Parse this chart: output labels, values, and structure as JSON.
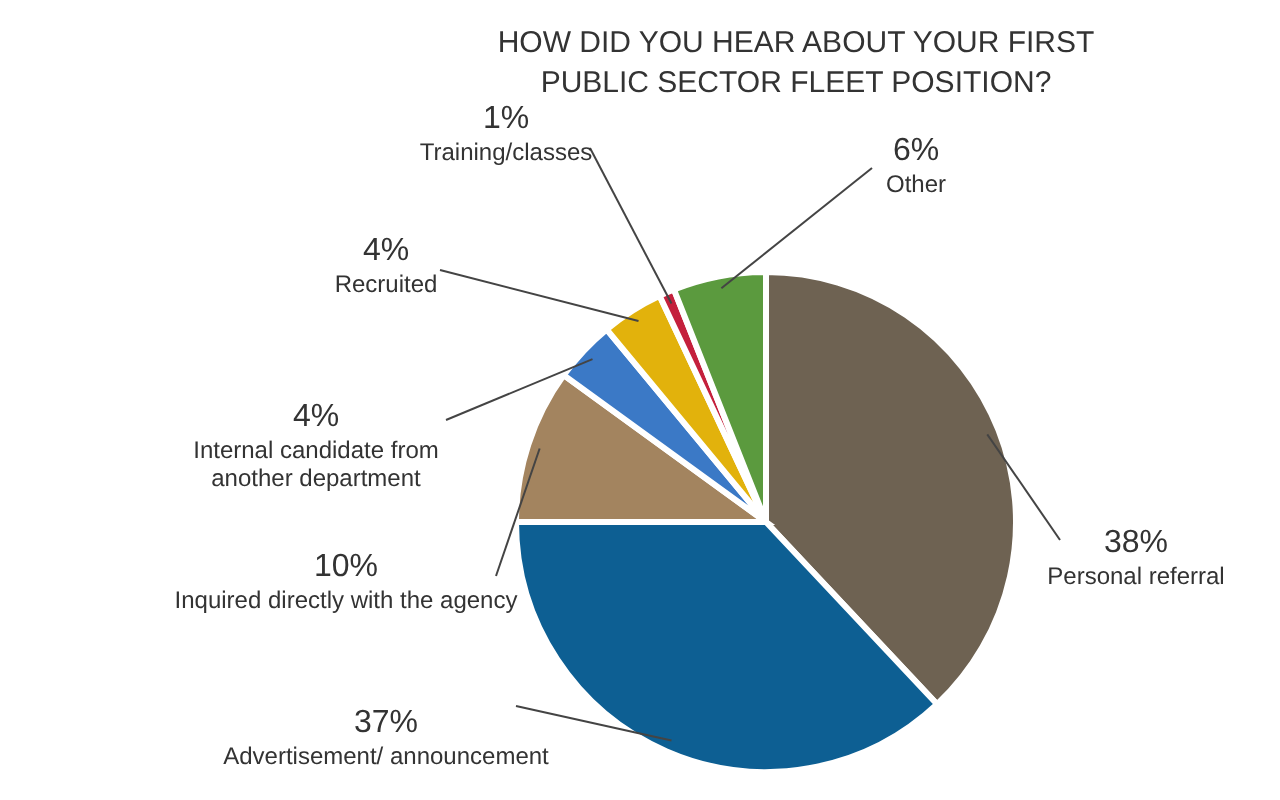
{
  "chart_data": {
    "type": "pie",
    "title": "HOW DID YOU HEAR ABOUT YOUR FIRST PUBLIC SECTOR FLEET POSITION?",
    "categories": [
      "Personal  referral",
      "Advertisement/ announcement",
      "Inquired directly with the agency",
      "Internal candidate from another department",
      "Recruited",
      "Training/classes",
      "Other"
    ],
    "values": [
      38,
      37,
      10,
      4,
      4,
      1,
      6
    ],
    "value_labels": [
      "38%",
      "37%",
      "10%",
      "4%",
      "4%",
      "1%",
      "6%"
    ],
    "colors": [
      "#6e6252",
      "#0d5f93",
      "#a3845f",
      "#3b79c6",
      "#e2b20c",
      "#c4203c",
      "#5b9a3e"
    ]
  }
}
